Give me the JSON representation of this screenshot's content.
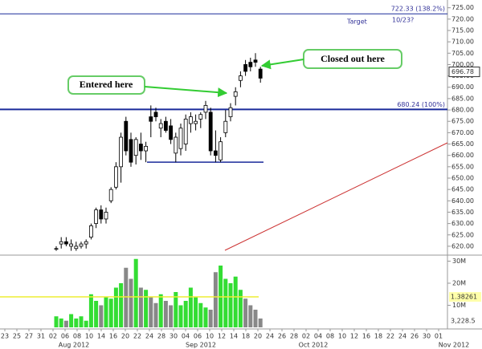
{
  "chart_data": {
    "type": "candlestick",
    "ylim": [
      617.5,
      727
    ],
    "yticks": [
      {
        "value": 620,
        "label": "620.00"
      },
      {
        "value": 625,
        "label": "625.00"
      },
      {
        "value": 630,
        "label": "630.00"
      },
      {
        "value": 635,
        "label": "635.00"
      },
      {
        "value": 640,
        "label": "640.00"
      },
      {
        "value": 645,
        "label": "645.00"
      },
      {
        "value": 650,
        "label": "650.00"
      },
      {
        "value": 655,
        "label": "655.00"
      },
      {
        "value": 660,
        "label": "660.00"
      },
      {
        "value": 665,
        "label": "665.00"
      },
      {
        "value": 670,
        "label": "670.00"
      },
      {
        "value": 675,
        "label": "675.00"
      },
      {
        "value": 680,
        "label": "680.00"
      },
      {
        "value": 685,
        "label": "685.00"
      },
      {
        "value": 690,
        "label": "690.00"
      },
      {
        "value": 695,
        "label": "695.00"
      },
      {
        "value": 700,
        "label": "700.00"
      },
      {
        "value": 705,
        "label": "705.00"
      },
      {
        "value": 710,
        "label": "710.00"
      },
      {
        "value": 715,
        "label": "715.00"
      },
      {
        "value": 720,
        "label": "720.00"
      },
      {
        "value": 725,
        "label": "725.00"
      }
    ],
    "x_labels": [
      "23",
      "25",
      "27",
      "31",
      "02",
      "06",
      "08",
      "10",
      "14",
      "16",
      "20",
      "22",
      "24",
      "28",
      "30",
      "04",
      "06",
      "10",
      "12",
      "14",
      "18",
      "20",
      "24",
      "26",
      "28",
      "02",
      "04",
      "08",
      "10",
      "12",
      "16",
      "18",
      "22",
      "24",
      "26",
      "30",
      "01"
    ],
    "month_labels": [
      "Aug 2012",
      "Sep 2012",
      "Oct 2012",
      "Nov 2012"
    ],
    "open": [
      619,
      621,
      622,
      620,
      619,
      620,
      621,
      624,
      630,
      636,
      632,
      640,
      646,
      655,
      675,
      667,
      660,
      665,
      662,
      677,
      679,
      672,
      675,
      673,
      661,
      663,
      665,
      674,
      674,
      676,
      679,
      679,
      662,
      658,
      670,
      677,
      686,
      693,
      700,
      701,
      702,
      698
    ],
    "high": [
      620,
      624,
      624,
      623,
      622,
      622,
      623,
      630,
      637,
      638,
      637,
      646,
      657,
      670,
      677,
      670,
      668,
      670,
      666,
      682,
      681,
      676,
      677,
      676,
      670,
      674,
      678,
      679,
      678,
      679,
      684,
      681,
      671,
      668,
      680,
      683,
      690,
      697,
      702,
      703,
      705,
      699
    ],
    "low": [
      618,
      619,
      620,
      618,
      618,
      619,
      619,
      623,
      628,
      630,
      630,
      639,
      645,
      648,
      660,
      655,
      656,
      658,
      657,
      668,
      675,
      668,
      670,
      665,
      657,
      660,
      662,
      670,
      671,
      672,
      676,
      660,
      657,
      657,
      668,
      675,
      682,
      690,
      695,
      697,
      699,
      692
    ],
    "close": [
      619,
      622,
      621,
      621,
      620,
      621,
      622,
      629,
      636,
      632,
      635,
      645,
      655,
      668,
      662,
      657,
      667,
      662,
      664,
      675,
      677,
      674,
      671,
      667,
      668,
      672,
      676,
      677,
      675,
      678,
      682,
      662,
      660,
      666,
      675,
      681,
      688,
      695,
      697,
      699,
      701,
      694
    ],
    "last_price": {
      "value": 696.78,
      "label": "696.78"
    },
    "levels": [
      {
        "value": 722.33,
        "label": "722.33 (138.2%)"
      },
      {
        "value": 680.24,
        "label": "680.24 (100%)"
      }
    ],
    "support": 657,
    "annotations": {
      "target": "Target",
      "target_date": "10/23?",
      "entered": "Entered here",
      "closed": "Closed out here"
    },
    "volume": {
      "values": [
        5,
        4,
        3,
        6,
        4,
        5,
        3,
        15,
        12,
        10,
        14,
        13,
        18,
        20,
        27,
        22,
        31,
        18,
        17,
        14,
        11,
        15,
        12,
        10,
        16,
        10,
        12,
        18,
        14,
        11,
        9,
        8,
        25,
        28,
        22,
        20,
        23,
        17,
        13,
        10,
        8,
        4
      ],
      "ylim": [
        0,
        32
      ],
      "yticks": [
        {
          "value": 10,
          "label": "10M"
        },
        {
          "value": 20,
          "label": "20M"
        },
        {
          "value": 30,
          "label": "30M"
        }
      ],
      "average": 13.8,
      "average_label": "1.38261",
      "last_label": "3,228.5"
    }
  }
}
